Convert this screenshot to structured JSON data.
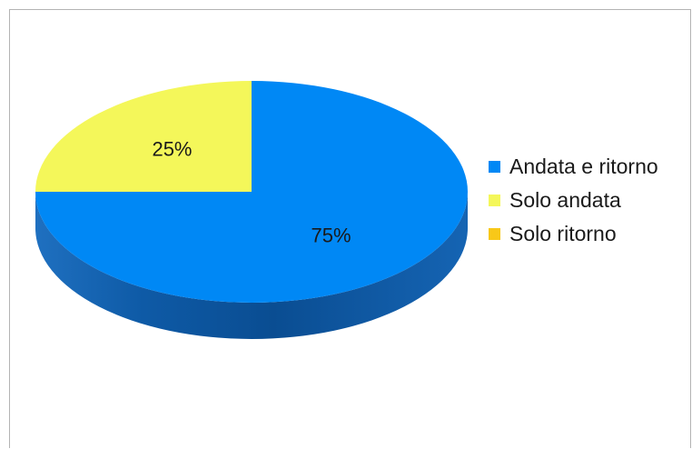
{
  "chart_data": {
    "type": "pie",
    "style": "3d",
    "title": "",
    "categories": [
      "Andata e ritorno",
      "Solo andata",
      "Solo ritorno"
    ],
    "values": [
      75,
      25,
      0
    ],
    "data_labels": [
      "75%",
      "25%",
      ""
    ],
    "colors": [
      "#0088f5",
      "#f4f75a",
      "#f8c818"
    ],
    "side_colors": [
      "#1565b4",
      "#c5c84a",
      "#c9a215"
    ],
    "legend": {
      "position": "right",
      "items": [
        {
          "label": "Andata e ritorno",
          "color": "#0088f5"
        },
        {
          "label": "Solo andata",
          "color": "#f4f75a"
        },
        {
          "label": "Solo ritorno",
          "color": "#f8c818"
        }
      ]
    }
  }
}
